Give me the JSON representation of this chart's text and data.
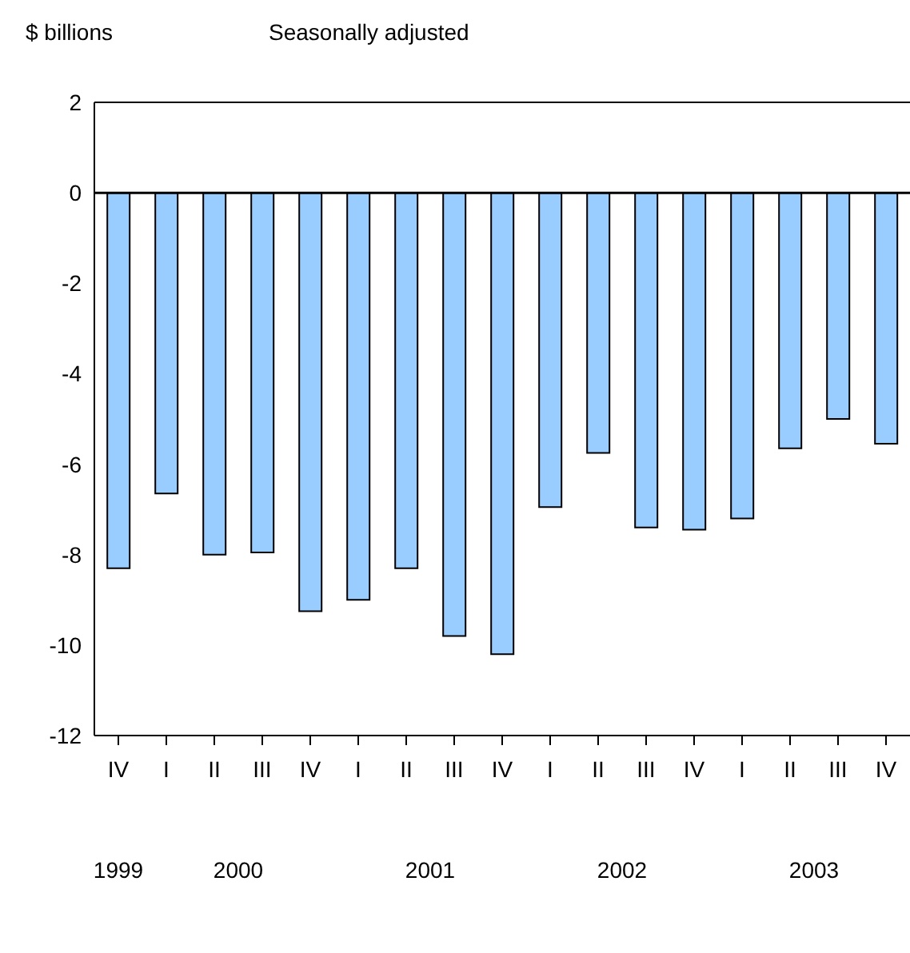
{
  "chart_data": {
    "type": "bar",
    "ylabel": "$ billions",
    "subtitle": "Seasonally adjusted",
    "categories": [
      "IV",
      "I",
      "II",
      "III",
      "IV",
      "I",
      "II",
      "III",
      "IV",
      "I",
      "II",
      "III",
      "IV",
      "I",
      "II",
      "III",
      "IV"
    ],
    "values": [
      -8.3,
      -6.65,
      -8.0,
      -7.95,
      -9.25,
      -9.0,
      -8.3,
      -9.8,
      -10.2,
      -6.95,
      -5.75,
      -7.4,
      -7.45,
      -7.2,
      -5.65,
      -5.0,
      -5.55
    ],
    "color": "#99ccff",
    "ylim": [
      -12,
      2
    ],
    "yticks": [
      -12,
      -10,
      -8,
      -6,
      -4,
      -2,
      0,
      2
    ],
    "ref_lines": [
      {
        "axis": "y",
        "value": 0
      }
    ],
    "annotations": [
      "1999",
      "2000",
      "2001",
      "2002",
      "2003"
    ]
  }
}
